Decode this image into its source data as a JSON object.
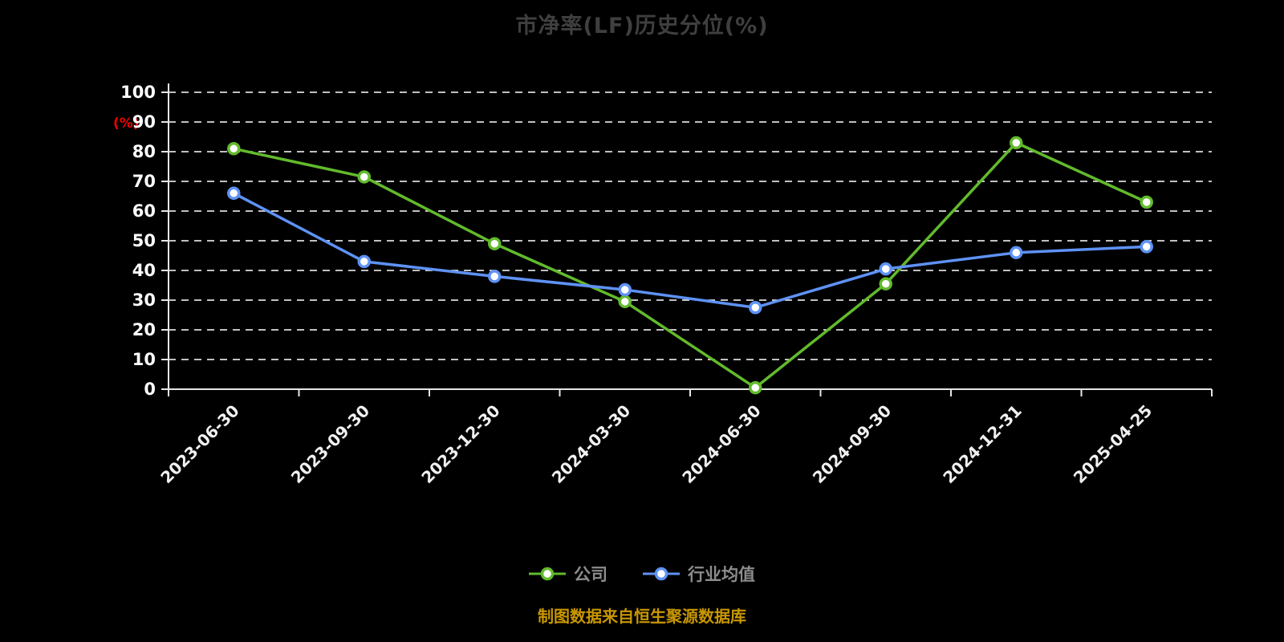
{
  "chart_data": {
    "type": "line",
    "title": "市净率(LF)历史分位(%)",
    "ylabel": "(%)",
    "xlabel": "",
    "categories": [
      "2023-06-30",
      "2023-09-30",
      "2023-12-30",
      "2024-03-30",
      "2024-06-30",
      "2024-09-30",
      "2024-12-31",
      "2025-04-25"
    ],
    "series": [
      {
        "name": "公司",
        "color": "#62ba2c",
        "values": [
          81,
          71.5,
          49,
          29.5,
          0.5,
          35.5,
          83,
          63
        ]
      },
      {
        "name": "行业均值",
        "color": "#5e92f5",
        "values": [
          66,
          43,
          38,
          33.5,
          27.5,
          40.5,
          46,
          48
        ]
      }
    ],
    "ylim": [
      0,
      100
    ],
    "ytick_interval": 10,
    "grid": "dashed-horizontal",
    "legend_position": "bottom"
  },
  "colors": {
    "background": "#000000",
    "title": "#3f3f3f",
    "axis": "#e6e6e6",
    "gridline": "#ffffff",
    "tick_label": "#ffffff",
    "ylabel": "#f20000",
    "legend_label": "#8c8c8c",
    "footer": "#c99700",
    "series_company": "#62ba2c",
    "series_industry": "#5e92f5"
  },
  "footer": {
    "note": "制图数据来自恒生聚源数据库"
  }
}
